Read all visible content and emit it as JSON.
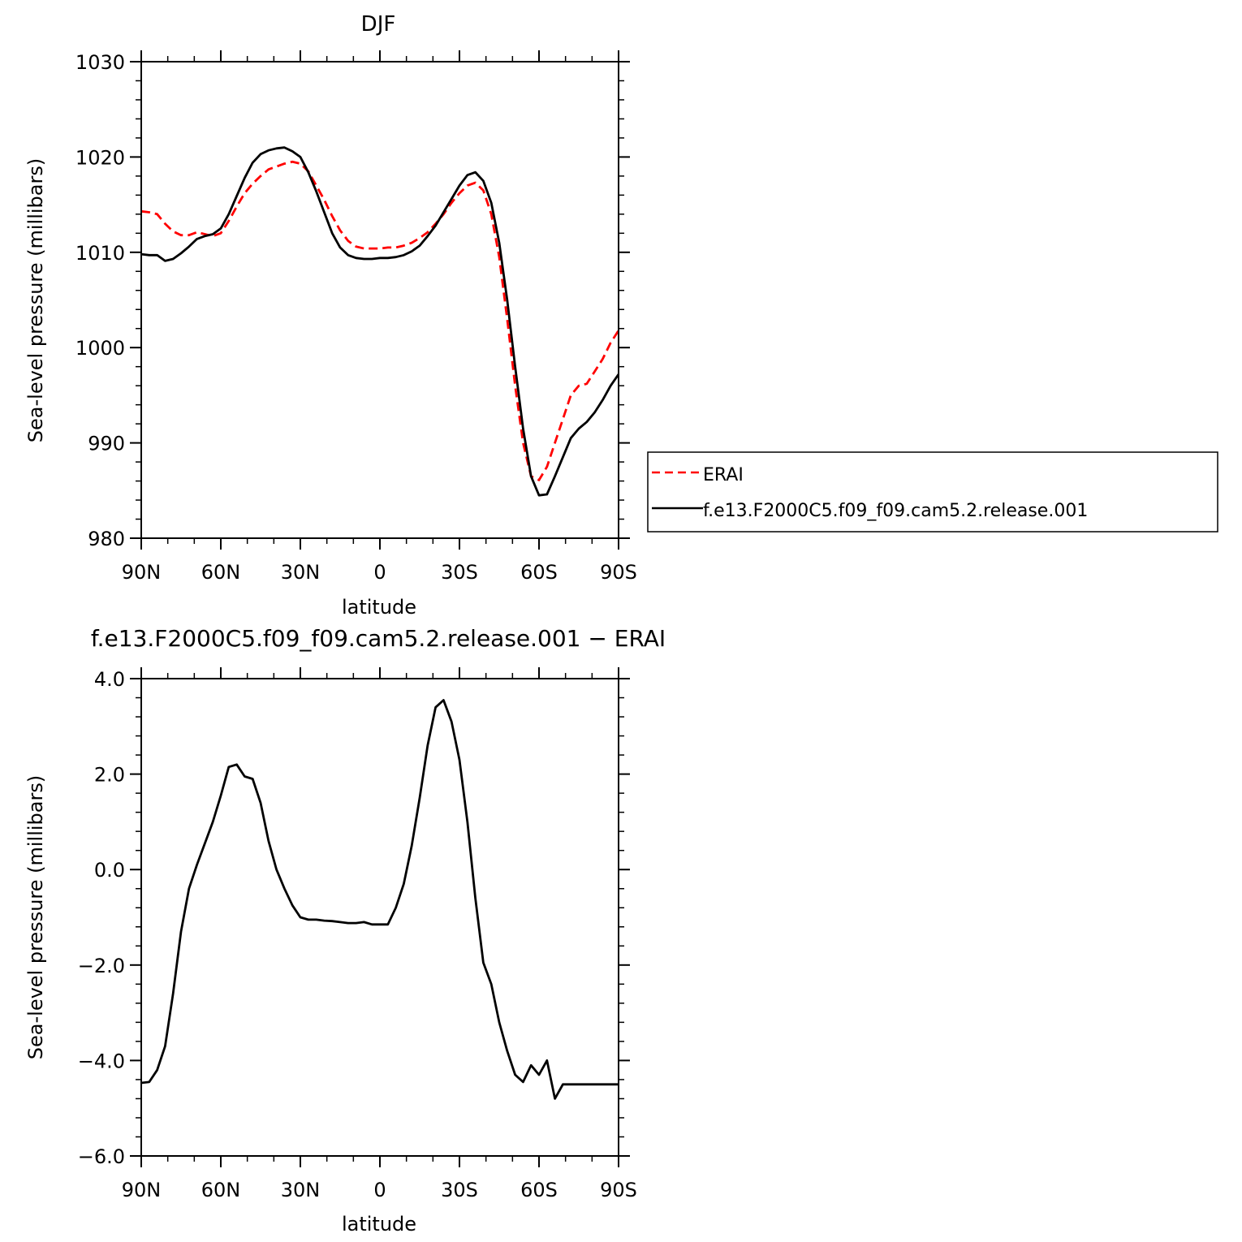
{
  "chart_data": [
    {
      "type": "line",
      "title": "DJF",
      "xlabel": "latitude",
      "ylabel": "Sea-level pressure (millibars)",
      "xlim": [
        90,
        -90
      ],
      "ylim": [
        980,
        1030
      ],
      "xticks": [
        90,
        60,
        30,
        0,
        -30,
        -60,
        -90
      ],
      "xtick_labels": [
        "90N",
        "60N",
        "30N",
        "0",
        "30S",
        "60S",
        "90S"
      ],
      "yticks": [
        980,
        990,
        1000,
        1010,
        1020,
        1030
      ],
      "ytick_labels": [
        "980",
        "990",
        "1000",
        "1010",
        "1020",
        "1030"
      ],
      "legend": {
        "position": "right",
        "entries": [
          "ERAI",
          "f.e13.F2000C5.f09_f09.cam5.2.release.001"
        ]
      },
      "series": [
        {
          "name": "ERAI",
          "color": "#ff0000",
          "dash": "dashed",
          "x": [
            90,
            87,
            84,
            81,
            78,
            75,
            72,
            69,
            66,
            63,
            60,
            57,
            54,
            51,
            48,
            45,
            42,
            39,
            36,
            33,
            30,
            27,
            24,
            21,
            18,
            15,
            12,
            9,
            6,
            3,
            0,
            -3,
            -6,
            -9,
            -12,
            -15,
            -18,
            -21,
            -24,
            -27,
            -30,
            -33,
            -36,
            -39,
            -42,
            -45,
            -48,
            -51,
            -54,
            -57,
            -60,
            -63,
            -66,
            -69,
            -72,
            -75,
            -78,
            -81,
            -84,
            -87,
            -90
          ],
          "y": [
            1014.3,
            1014.2,
            1014.0,
            1013.0,
            1012.2,
            1011.8,
            1011.8,
            1012.1,
            1011.9,
            1011.7,
            1012.0,
            1013.3,
            1014.8,
            1016.2,
            1017.2,
            1018.0,
            1018.7,
            1019.0,
            1019.3,
            1019.5,
            1019.3,
            1018.5,
            1017.0,
            1015.5,
            1013.8,
            1012.3,
            1011.2,
            1010.6,
            1010.4,
            1010.4,
            1010.4,
            1010.5,
            1010.5,
            1010.7,
            1011.0,
            1011.5,
            1012.1,
            1013.0,
            1014.0,
            1015.2,
            1016.2,
            1017.0,
            1017.3,
            1016.5,
            1014.0,
            1009.5,
            1003.0,
            996.0,
            990.0,
            986.5,
            986.1,
            987.5,
            990.0,
            992.5,
            995.0,
            996.0,
            996.2,
            997.5,
            998.8,
            1000.5,
            1001.8
          ]
        },
        {
          "name": "f.e13.F2000C5.f09_f09.cam5.2.release.001",
          "color": "#000000",
          "dash": "solid",
          "x": [
            90,
            87,
            84,
            81,
            78,
            75,
            72,
            69,
            66,
            63,
            60,
            57,
            54,
            51,
            48,
            45,
            42,
            39,
            36,
            33,
            30,
            27,
            24,
            21,
            18,
            15,
            12,
            9,
            6,
            3,
            0,
            -3,
            -6,
            -9,
            -12,
            -15,
            -18,
            -21,
            -24,
            -27,
            -30,
            -33,
            -36,
            -39,
            -42,
            -45,
            -48,
            -51,
            -54,
            -57,
            -60,
            -63,
            -66,
            -69,
            -72,
            -75,
            -78,
            -81,
            -84,
            -87,
            -90
          ],
          "y": [
            1009.8,
            1009.7,
            1009.7,
            1009.1,
            1009.3,
            1009.9,
            1010.6,
            1011.4,
            1011.7,
            1011.9,
            1012.5,
            1014.0,
            1015.9,
            1017.8,
            1019.4,
            1020.3,
            1020.7,
            1020.9,
            1021.0,
            1020.6,
            1020.0,
            1018.4,
            1016.4,
            1014.2,
            1012.0,
            1010.5,
            1009.7,
            1009.4,
            1009.3,
            1009.3,
            1009.4,
            1009.4,
            1009.5,
            1009.7,
            1010.1,
            1010.7,
            1011.7,
            1012.8,
            1014.2,
            1015.6,
            1017.0,
            1018.1,
            1018.4,
            1017.5,
            1015.2,
            1011.0,
            1005.0,
            998.0,
            991.5,
            986.5,
            984.5,
            984.6,
            986.5,
            988.5,
            990.5,
            991.5,
            992.2,
            993.2,
            994.5,
            996.0,
            997.2
          ]
        }
      ]
    },
    {
      "type": "line",
      "title": "f.e13.F2000C5.f09_f09.cam5.2.release.001 − ERAI",
      "xlabel": "latitude",
      "ylabel": "Sea-level pressure (millibars)",
      "xlim": [
        90,
        -90
      ],
      "ylim": [
        -6,
        4
      ],
      "xticks": [
        90,
        60,
        30,
        0,
        -30,
        -60,
        -90
      ],
      "xtick_labels": [
        "90N",
        "60N",
        "30N",
        "0",
        "30S",
        "60S",
        "90S"
      ],
      "yticks": [
        -6,
        -4,
        -2,
        0,
        2,
        4
      ],
      "ytick_labels": [
        "−6.0",
        "−4.0",
        "−2.0",
        "0.0",
        "2.0",
        "4.0"
      ],
      "series": [
        {
          "color": "#000000",
          "dash": "solid",
          "x": [
            90,
            87,
            84,
            81,
            78,
            75,
            72,
            69,
            66,
            63,
            60,
            57,
            54,
            51,
            48,
            45,
            42,
            39,
            36,
            33,
            30,
            27,
            24,
            21,
            18,
            15,
            12,
            9,
            6,
            3,
            0,
            -3,
            -6,
            -9,
            -12,
            -15,
            -18,
            -21,
            -24,
            -27,
            -30,
            -33,
            -36,
            -39,
            -42,
            -45,
            -48,
            -51,
            -54,
            -57,
            -60,
            -63,
            -66,
            -69,
            -72,
            -75,
            -78,
            -81,
            -84,
            -87,
            -90
          ],
          "y": [
            -4.47,
            -4.45,
            -4.2,
            -3.7,
            -2.6,
            -1.3,
            -0.4,
            0.1,
            0.55,
            1.0,
            1.55,
            2.15,
            2.2,
            1.95,
            1.9,
            1.4,
            0.6,
            0.0,
            -0.4,
            -0.75,
            -1.0,
            -1.05,
            -1.05,
            -1.07,
            -1.08,
            -1.1,
            -1.12,
            -1.12,
            -1.1,
            -1.15,
            -1.15,
            -1.15,
            -0.8,
            -0.3,
            0.5,
            1.5,
            2.6,
            3.4,
            3.55,
            3.1,
            2.3,
            1.0,
            -0.6,
            -1.95,
            -2.4,
            -3.2,
            -3.8,
            -4.3,
            -4.45,
            -4.1,
            -4.3,
            -4.0,
            -4.8,
            -4.5,
            -4.5,
            -4.5,
            -4.5,
            -4.5,
            -4.5,
            -4.5,
            -4.5
          ]
        }
      ]
    }
  ]
}
